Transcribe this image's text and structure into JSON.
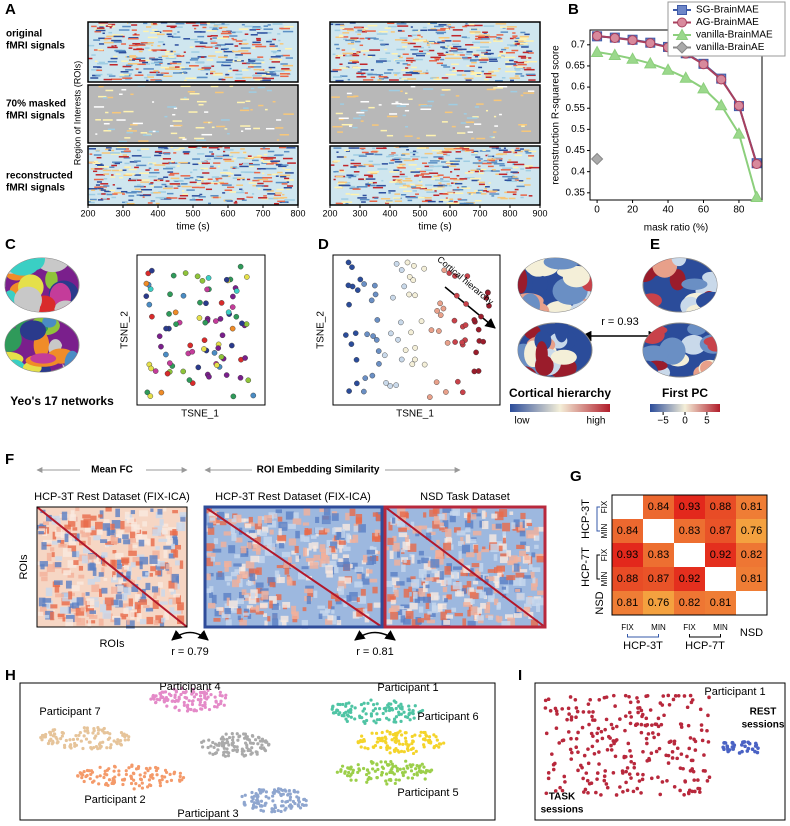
{
  "panels": {
    "A": {
      "label": "A",
      "row_labels": [
        [
          "original",
          "fMRI signals"
        ],
        [
          "70% masked",
          "fMRI signals"
        ],
        [
          "reconstructed",
          "fMRI signals"
        ]
      ],
      "ylabel": "Region of Interests (ROIs)",
      "plots": [
        {
          "xlabel": "time (s)",
          "xlim": [
            200,
            800
          ],
          "xticks": [
            200,
            300,
            400,
            500,
            600,
            700,
            800
          ]
        },
        {
          "xlabel": "time (s)",
          "xlim": [
            200,
            900
          ],
          "xticks": [
            200,
            300,
            400,
            500,
            600,
            700,
            800,
            900
          ]
        }
      ]
    },
    "C": {
      "label": "C",
      "caption": "Yeo's 17 networks",
      "xlabel": "TSNE_1",
      "ylabel": "TSNE_2"
    },
    "D": {
      "label": "D",
      "xlabel": "TSNE_1",
      "ylabel": "TSNE_2",
      "arrow_label": "Cortical hierarchy",
      "caption": "Cortical hierarchy",
      "colorbar_labels": [
        "low",
        "high"
      ]
    },
    "E": {
      "label": "E",
      "correlation": "r = 0.93",
      "caption": "First PC",
      "colorbar": {
        "lim": [
          -8,
          8
        ],
        "ticks": [
          {
            "value": -5,
            "label": "−5"
          },
          0,
          5
        ]
      }
    },
    "F": {
      "label": "F",
      "group_titles": [
        "Mean FC",
        "ROI Embedding Similarity"
      ],
      "matrix_titles": [
        "HCP-3T Rest Dataset (FIX-ICA)",
        "HCP-3T Rest Dataset (FIX-ICA)",
        "NSD Task Dataset"
      ],
      "ylabel": "ROIs",
      "xlabel": "ROIs",
      "correlations": [
        "r = 0.79",
        "r = 0.81"
      ]
    },
    "H": {
      "label": "H",
      "participants": [
        "Participant 4",
        "Participant 1",
        "Participant 7",
        "Participant 6",
        "Participant 2",
        "Participant 5",
        "Participant 3"
      ]
    },
    "I": {
      "label": "I",
      "title": "Participant 1",
      "rest_label": [
        "REST",
        "sessions"
      ],
      "task_label": [
        "TASK",
        "sessions"
      ]
    }
  },
  "chart_data": [
    {
      "type": "line",
      "panel": "B",
      "xlabel": "mask ratio (%)",
      "ylabel": "reconstruction R-squared score",
      "xlim": [
        -4,
        93
      ],
      "xticks": [
        0,
        20,
        40,
        60,
        80
      ],
      "ylim": [
        0.333,
        0.735
      ],
      "yticks": [
        0.35,
        0.4,
        0.45,
        0.5,
        0.55,
        0.6,
        0.65,
        0.7
      ],
      "legend": "upper right",
      "series": [
        {
          "name": "SG-BrainMAE",
          "color": "#6d86c8",
          "line_color": "#3f5aa8",
          "marker": "square",
          "x": [
            0,
            10,
            20,
            30,
            40,
            50,
            60,
            70,
            80,
            90
          ],
          "values": [
            0.72,
            0.717,
            0.712,
            0.705,
            0.695,
            0.68,
            0.655,
            0.62,
            0.555,
            0.42
          ]
        },
        {
          "name": "AG-BrainMAE",
          "color": "#d88a9c",
          "line_color": "#a8405e",
          "marker": "circle",
          "x": [
            0,
            10,
            20,
            30,
            40,
            50,
            60,
            70,
            80,
            90
          ],
          "values": [
            0.721,
            0.716,
            0.711,
            0.704,
            0.694,
            0.679,
            0.654,
            0.618,
            0.556,
            0.418
          ]
        },
        {
          "name": "vanilla-BrainMAE",
          "color": "#9bd88c",
          "line_color": "#8ccf7c",
          "marker": "triangle",
          "x": [
            0,
            10,
            20,
            30,
            40,
            50,
            60,
            70,
            80,
            90
          ],
          "values": [
            0.683,
            0.676,
            0.667,
            0.656,
            0.641,
            0.622,
            0.597,
            0.557,
            0.49,
            0.34
          ]
        },
        {
          "name": "vanilla-BrainAE",
          "color": "#aaaaaa",
          "line_color": "#888888",
          "marker": "diamond",
          "x": [
            0
          ],
          "values": [
            0.43
          ]
        }
      ]
    },
    {
      "type": "heatmap",
      "panel": "G",
      "groups": [
        {
          "name": "HCP-3T",
          "color": "#3558a8",
          "members": [
            "FIX",
            "MIN"
          ]
        },
        {
          "name": "HCP-7T",
          "color": "#000000",
          "members": [
            "FIX",
            "MIN"
          ]
        },
        {
          "name": "NSD",
          "color": "#b8283c",
          "members": []
        }
      ],
      "values": [
        [
          null,
          0.84,
          0.93,
          0.88,
          0.81
        ],
        [
          0.84,
          null,
          0.83,
          0.87,
          0.76
        ],
        [
          0.93,
          0.83,
          null,
          0.92,
          0.82
        ],
        [
          0.88,
          0.87,
          0.92,
          null,
          0.81
        ],
        [
          0.81,
          0.76,
          0.82,
          0.81,
          null
        ]
      ]
    }
  ]
}
